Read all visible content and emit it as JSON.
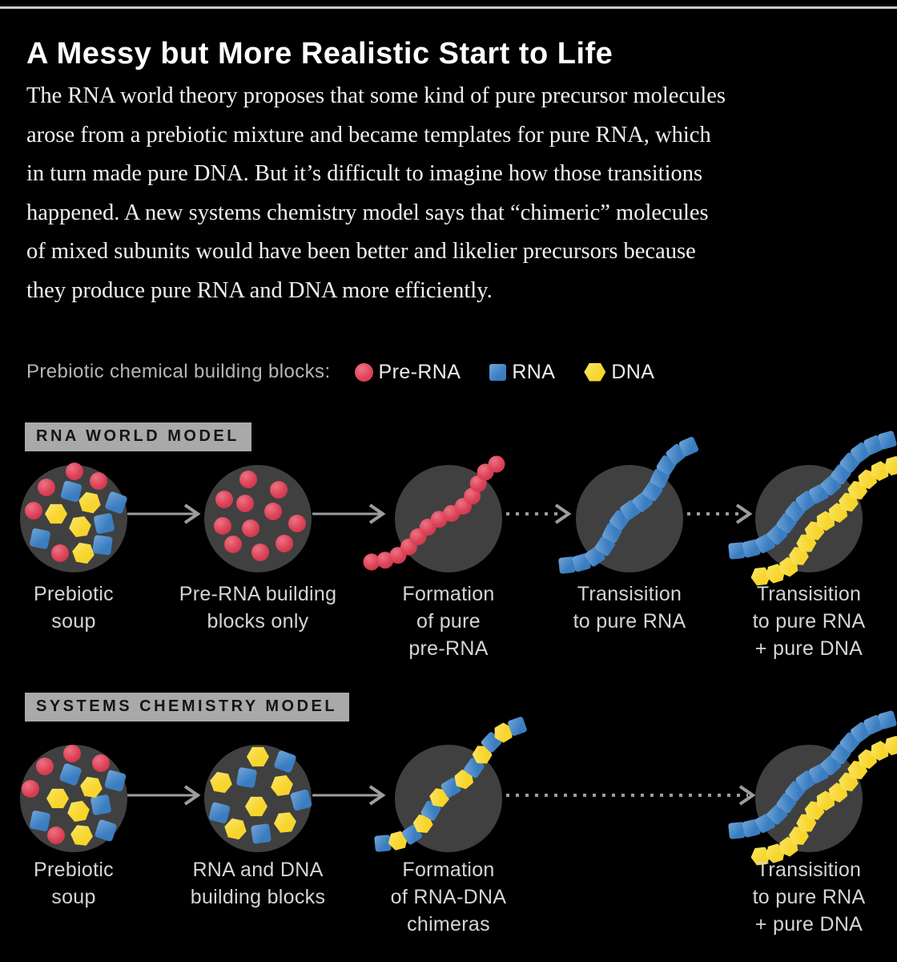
{
  "header": {
    "title": "A Messy but More Realistic Start to Life"
  },
  "intro": {
    "text": "The RNA world theory proposes that some kind of pure precursor molecules\narose from a prebiotic mixture and became templates for pure RNA, which\nin turn made pure DNA. But it’s difficult to imagine how those transitions\nhappened. A new systems chemistry model says that “chimeric” molecules\nof mixed subunits would have been better and likelier precursors because\nthey produce pure RNA and DNA more efficiently."
  },
  "legend": {
    "label": "Prebiotic chemical building blocks:",
    "items": [
      {
        "name": "Pre-RNA",
        "icon": "red-circle-icon"
      },
      {
        "name": "RNA",
        "icon": "blue-square-icon"
      },
      {
        "name": "DNA",
        "icon": "yellow-hexagon-icon"
      }
    ]
  },
  "sections": [
    {
      "header": "RNA WORLD MODEL",
      "stages": [
        {
          "label": "Prebiotic\nsoup"
        },
        {
          "label": "Pre-RNA building\nblocks only"
        },
        {
          "label": "Formation\nof pure\npre-RNA"
        },
        {
          "label": "Transisition\nto pure RNA"
        },
        {
          "label": "Transisition\nto pure RNA\n+ pure DNA"
        }
      ]
    },
    {
      "header": "SYSTEMS CHEMISTRY MODEL",
      "stages": [
        {
          "label": "Prebiotic\nsoup"
        },
        {
          "label": "RNA and DNA\nbuilding blocks"
        },
        {
          "label": "Formation\nof RNA-DNA\nchimeras"
        },
        {
          "label": "Transisition\nto pure RNA\n+ pure DNA"
        }
      ]
    }
  ],
  "colors": {
    "background": "#000000",
    "top_rule": "#c9c9c9",
    "title_text": "#ffffff",
    "body_text": "#f1f1f1",
    "muted_text": "#b6b6b6",
    "stage_label_text": "#d5d5d5",
    "section_header_bg": "#a9a9a9",
    "section_header_text": "#151515",
    "stage_circle": "#404040",
    "pre_rna": "#dd4257",
    "pre_rna_highlight": "#ec7384",
    "rna": "#3a7dc0",
    "rna_highlight": "#72a5d8",
    "dna": "#f7d52d",
    "dna_highlight": "#fbe76c",
    "arrow": "#9d9d9d"
  }
}
